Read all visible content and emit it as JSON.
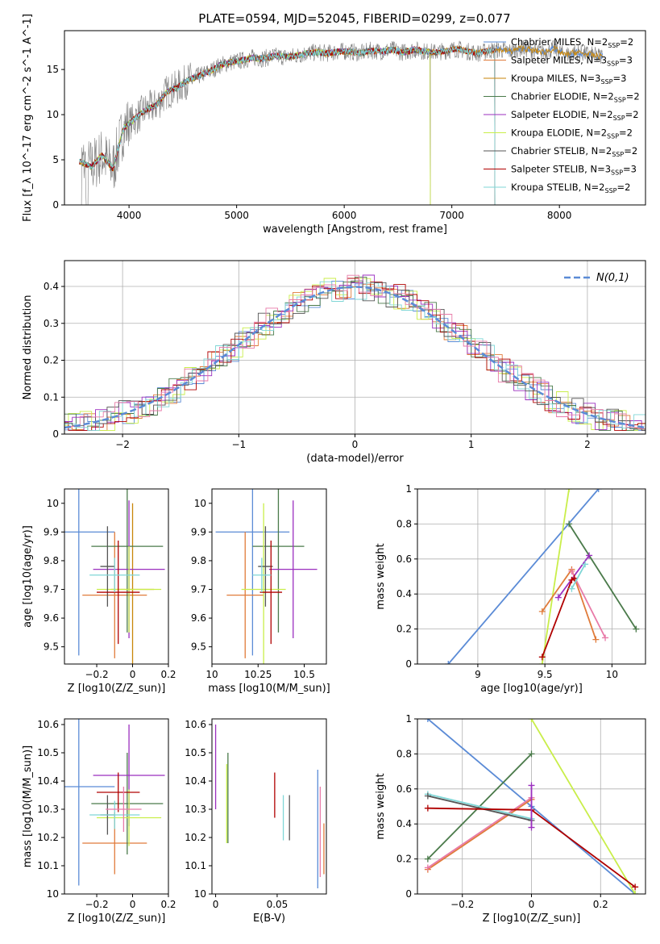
{
  "title": "PLATE=0594, MJD=52045, FIBERID=0299, z=0.077",
  "colors": {
    "chabrier_miles": "#5b8bd6",
    "salpeter_miles": "#e07b3a",
    "kroupa_miles": "#c8860a",
    "chabrier_elodie": "#4a7a4a",
    "salpeter_elodie": "#9b2fbf",
    "kroupa_elodie": "#c9ee4a",
    "chabrier_stelib": "#555555",
    "salpeter_stelib": "#b00000",
    "kroupa_stelib": "#7fd6d6",
    "pink": "#e87aa8",
    "data_grey": "#808080"
  },
  "legend_entries": [
    "Chabrier MILES, N_SSP=2",
    "Salpeter MILES, N_SSP=3",
    "Kroupa MILES, N_SSP=3",
    "Chabrier ELODIE, N_SSP=2",
    "Salpeter ELODIE, N_SSP=2",
    "Kroupa ELODIE, N_SSP=2",
    "Chabrier STELIB, N_SSP=2",
    "Salpeter STELIB, N_SSP=3",
    "Kroupa STELIB, N_SSP=2"
  ],
  "chart_data": [
    {
      "type": "line",
      "name": "spectrum",
      "xlabel": "wavelength [Angstrom, rest frame]",
      "ylabel": "Flux [f_λ 10^-17 erg cm^-2 s^-1 A^-1]",
      "xlim": [
        3400,
        8800
      ],
      "ylim": [
        0,
        19.3
      ],
      "xticks": [
        4000,
        5000,
        6000,
        7000,
        8000
      ],
      "yticks": [
        0,
        5,
        10,
        15
      ],
      "data_x": [
        3550,
        3650,
        3750,
        3850,
        3950,
        4050,
        4150,
        4250,
        4350,
        4450,
        4550,
        4650,
        4750,
        4850,
        4950,
        5050,
        5150,
        5250,
        5350,
        5450,
        5550,
        5650,
        5750,
        5850,
        5950,
        6050,
        6150,
        6250,
        6350,
        6450,
        6550,
        6650,
        6750,
        6850,
        6950,
        7050,
        7150,
        7250,
        7350,
        7450,
        7550,
        7650,
        7750,
        7850,
        7950,
        8050,
        8150,
        8250,
        8350
      ],
      "data_y": [
        4.8,
        4.2,
        5.5,
        4.0,
        8.5,
        9.5,
        10.5,
        11.0,
        12.5,
        13.0,
        13.8,
        14.3,
        14.8,
        15.5,
        15.8,
        16.0,
        16.3,
        16.2,
        16.5,
        16.4,
        16.5,
        16.8,
        16.9,
        16.8,
        17.0,
        17.0,
        16.8,
        17.1,
        17.0,
        17.2,
        16.9,
        17.2,
        17.0,
        16.9,
        17.1,
        17.3,
        17.0,
        16.8,
        17.1,
        17.2,
        17.0,
        17.4,
        17.1,
        16.9,
        17.3,
        16.6,
        16.9,
        16.7,
        16.5
      ]
    },
    {
      "type": "line",
      "name": "residual distribution",
      "xlabel": "(data-model)/error",
      "ylabel": "Normed distribution",
      "xlim": [
        -2.5,
        2.5
      ],
      "ylim": [
        0,
        0.47
      ],
      "xticks": [
        -2,
        -1,
        0,
        1,
        2
      ],
      "yticks": [
        0.0,
        0.1,
        0.2,
        0.3,
        0.4
      ],
      "legend": "N(0,1)",
      "legend_location": "upper right",
      "grid": true
    },
    {
      "type": "scatter",
      "name": "age vs Z",
      "xlabel": "Z [log10(Z/Z_sun)]",
      "ylabel": "age [log10(age/yr)]",
      "xlim": [
        -0.38,
        0.2
      ],
      "ylim": [
        9.44,
        10.05
      ],
      "xticks": [
        -0.2,
        0.0,
        0.2
      ],
      "yticks": [
        9.5,
        9.6,
        9.7,
        9.8,
        9.9,
        10.0
      ],
      "points": [
        {
          "model": "chabrier_miles",
          "x": -0.3,
          "xerr": 0.2,
          "y": 9.9,
          "yerr": 0.43
        },
        {
          "model": "salpeter_miles",
          "x": -0.1,
          "xerr": 0.18,
          "y": 9.68,
          "yerr": 0.22
        },
        {
          "model": "kroupa_miles",
          "x": 0.0,
          "xerr": 0.12,
          "y": 9.7,
          "yerr": 0.3
        },
        {
          "model": "chabrier_elodie",
          "x": -0.03,
          "xerr": 0.2,
          "y": 9.85,
          "yerr": 0.3
        },
        {
          "model": "salpeter_elodie",
          "x": -0.02,
          "xerr": 0.2,
          "y": 9.77,
          "yerr": 0.24
        },
        {
          "model": "kroupa_elodie",
          "x": -0.02,
          "xerr": 0.18,
          "y": 9.7,
          "yerr": 0.15
        },
        {
          "model": "chabrier_stelib",
          "x": -0.14,
          "xerr": 0.04,
          "y": 9.78,
          "yerr": 0.14
        },
        {
          "model": "salpeter_stelib",
          "x": -0.08,
          "xerr": 0.12,
          "y": 9.69,
          "yerr": 0.18
        },
        {
          "model": "kroupa_stelib",
          "x": -0.1,
          "xerr": 0.14,
          "y": 9.75,
          "yerr": 0.06
        }
      ]
    },
    {
      "type": "scatter",
      "name": "age vs mass",
      "xlabel": "mass [log10(M/M_sun)]",
      "ylabel": "",
      "xlim": [
        10.0,
        10.62
      ],
      "ylim": [
        9.44,
        10.05
      ],
      "xticks": [
        10.0,
        10.25,
        10.5
      ],
      "yticks": [
        9.5,
        9.6,
        9.7,
        9.8,
        9.9,
        10.0
      ],
      "points": [
        {
          "model": "chabrier_miles",
          "x": 10.22,
          "xerr": 0.2,
          "y": 9.9,
          "yerr": 0.43
        },
        {
          "model": "salpeter_miles",
          "x": 10.18,
          "xerr": 0.1,
          "y": 9.68,
          "yerr": 0.22
        },
        {
          "model": "chabrier_elodie",
          "x": 10.36,
          "xerr": 0.14,
          "y": 9.85,
          "yerr": 0.3
        },
        {
          "model": "salpeter_elodie",
          "x": 10.44,
          "xerr": 0.13,
          "y": 9.77,
          "yerr": 0.24
        },
        {
          "model": "kroupa_elodie",
          "x": 10.28,
          "xerr": 0.12,
          "y": 9.7,
          "yerr": 0.3
        },
        {
          "model": "chabrier_stelib",
          "x": 10.29,
          "xerr": 0.04,
          "y": 9.78,
          "yerr": 0.14
        },
        {
          "model": "salpeter_stelib",
          "x": 10.32,
          "xerr": 0.06,
          "y": 9.69,
          "yerr": 0.18
        },
        {
          "model": "kroupa_stelib",
          "x": 10.27,
          "xerr": 0.05,
          "y": 9.75,
          "yerr": 0.06
        }
      ]
    },
    {
      "type": "line",
      "name": "mass weight vs age",
      "xlabel": "age [log10(age/yr)]",
      "ylabel": "mass weight",
      "xlim": [
        8.55,
        10.25
      ],
      "ylim": [
        0,
        1
      ],
      "xticks": [
        9.0,
        9.5,
        10.0
      ],
      "yticks": [
        0.0,
        0.2,
        0.4,
        0.6,
        0.8,
        1.0
      ],
      "grid": true,
      "series": [
        {
          "model": "chabrier_miles",
          "x": [
            8.78,
            9.9
          ],
          "y": [
            0.0,
            1.0
          ]
        },
        {
          "model": "kroupa_elodie",
          "x": [
            9.48,
            9.68
          ],
          "y": [
            0.0,
            1.0
          ]
        },
        {
          "model": "chabrier_elodie",
          "x": [
            9.68,
            10.18
          ],
          "y": [
            0.8,
            0.2
          ]
        },
        {
          "model": "salpeter_elodie",
          "x": [
            9.6,
            9.83
          ],
          "y": [
            0.38,
            0.62
          ]
        },
        {
          "model": "salpeter_miles",
          "x": [
            9.48,
            9.7,
            9.88
          ],
          "y": [
            0.3,
            0.54,
            0.14
          ]
        },
        {
          "model": "pink",
          "x": [
            9.7,
            9.95
          ],
          "y": [
            0.53,
            0.15
          ]
        },
        {
          "model": "salpeter_stelib",
          "x": [
            9.48,
            9.7,
            9.72
          ],
          "y": [
            0.04,
            0.48,
            0.49
          ]
        },
        {
          "model": "kroupa_stelib",
          "x": [
            9.7,
            9.8
          ],
          "y": [
            0.43,
            0.57
          ]
        }
      ]
    },
    {
      "type": "scatter",
      "name": "mass vs Z",
      "xlabel": "Z [log10(Z/Z_sun)]",
      "ylabel": "mass [log10(M/M_sun)]",
      "xlim": [
        -0.38,
        0.2
      ],
      "ylim": [
        10.0,
        10.62
      ],
      "xticks": [
        -0.2,
        0.0,
        0.2
      ],
      "yticks": [
        10.0,
        10.1,
        10.2,
        10.3,
        10.4,
        10.5,
        10.6
      ],
      "points": [
        {
          "model": "chabrier_miles",
          "x": -0.3,
          "xerr": 0.2,
          "y": 10.38,
          "yerr": 0.35
        },
        {
          "model": "salpeter_miles",
          "x": -0.1,
          "xerr": 0.18,
          "y": 10.18,
          "yerr": 0.11
        },
        {
          "model": "chabrier_elodie",
          "x": -0.03,
          "xerr": 0.2,
          "y": 10.32,
          "yerr": 0.18
        },
        {
          "model": "salpeter_elodie",
          "x": -0.02,
          "xerr": 0.2,
          "y": 10.42,
          "yerr": 0.18
        },
        {
          "model": "kroupa_elodie",
          "x": -0.02,
          "xerr": 0.18,
          "y": 10.27,
          "yerr": 0.1
        },
        {
          "model": "chabrier_stelib",
          "x": -0.14,
          "xerr": 0.04,
          "y": 10.28,
          "yerr": 0.07
        },
        {
          "model": "salpeter_stelib",
          "x": -0.08,
          "xerr": 0.12,
          "y": 10.36,
          "yerr": 0.07
        },
        {
          "model": "kroupa_stelib",
          "x": -0.1,
          "xerr": 0.14,
          "y": 10.28,
          "yerr": 0.05
        },
        {
          "model": "pink",
          "x": -0.05,
          "xerr": 0.1,
          "y": 10.3,
          "yerr": 0.08
        }
      ]
    },
    {
      "type": "scatter",
      "name": "mass vs E(B-V)",
      "xlabel": "E(B-V)",
      "ylabel": "",
      "xlim": [
        -0.003,
        0.09
      ],
      "ylim": [
        10.0,
        10.62
      ],
      "xticks": [
        0.0,
        0.05
      ],
      "yticks": [
        10.0,
        10.1,
        10.2,
        10.3,
        10.4,
        10.5,
        10.6
      ],
      "points": [
        {
          "model": "salpeter_elodie",
          "x": 0.0,
          "y": 10.45,
          "yerr": 0.15
        },
        {
          "model": "kroupa_elodie",
          "x": 0.009,
          "y": 10.32,
          "yerr": 0.14
        },
        {
          "model": "chabrier_elodie",
          "x": 0.01,
          "y": 10.34,
          "yerr": 0.16
        },
        {
          "model": "salpeter_stelib",
          "x": 0.048,
          "y": 10.35,
          "yerr": 0.08
        },
        {
          "model": "kroupa_stelib",
          "x": 0.055,
          "y": 10.27,
          "yerr": 0.08
        },
        {
          "model": "chabrier_stelib",
          "x": 0.06,
          "y": 10.27,
          "yerr": 0.08
        },
        {
          "model": "chabrier_miles",
          "x": 0.083,
          "y": 10.23,
          "yerr": 0.21
        },
        {
          "model": "pink",
          "x": 0.085,
          "y": 10.22,
          "yerr": 0.16
        },
        {
          "model": "salpeter_miles",
          "x": 0.088,
          "y": 10.16,
          "yerr": 0.09
        }
      ]
    },
    {
      "type": "line",
      "name": "mass weight vs Z",
      "xlabel": "Z [log10(Z/Z_sun)]",
      "ylabel": "mass weight",
      "xlim": [
        -0.33,
        0.33
      ],
      "ylim": [
        0,
        1
      ],
      "xticks": [
        -0.2,
        0.0,
        0.2
      ],
      "yticks": [
        0.0,
        0.2,
        0.4,
        0.6,
        0.8,
        1.0
      ],
      "grid": true,
      "series": [
        {
          "model": "chabrier_miles",
          "x": [
            -0.3,
            0.0,
            0.3
          ],
          "y": [
            1.0,
            0.5,
            0.0
          ]
        },
        {
          "model": "kroupa_elodie",
          "x": [
            0.0,
            0.3
          ],
          "y": [
            1.0,
            0.0
          ]
        },
        {
          "model": "chabrier_elodie",
          "x": [
            -0.3,
            0.0
          ],
          "y": [
            0.2,
            0.8
          ]
        },
        {
          "model": "salpeter_miles",
          "x": [
            -0.3,
            0.0
          ],
          "y": [
            0.14,
            0.54
          ]
        },
        {
          "model": "pink",
          "x": [
            -0.3,
            0.0
          ],
          "y": [
            0.15,
            0.55
          ]
        },
        {
          "model": "kroupa_stelib",
          "x": [
            -0.3,
            0.0
          ],
          "y": [
            0.57,
            0.43
          ]
        },
        {
          "model": "chabrier_stelib",
          "x": [
            -0.3,
            0.0
          ],
          "y": [
            0.56,
            0.42
          ]
        },
        {
          "model": "salpeter_stelib",
          "x": [
            -0.3,
            0.0,
            0.3
          ],
          "y": [
            0.49,
            0.48,
            0.04
          ]
        },
        {
          "model": "salpeter_elodie",
          "x": [
            0.0,
            0.0
          ],
          "y": [
            0.38,
            0.62
          ]
        }
      ]
    }
  ]
}
